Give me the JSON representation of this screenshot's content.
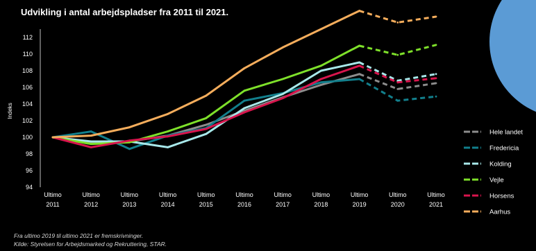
{
  "title": "Udvikling i antal arbejdspladser fra 2011 til 2021.",
  "footnotes": [
    "Fra ultimo 2019 til ultimo 2021 er fremskrivninger.",
    "Kilde: Styrelsen for Arbejdsmarked og Rekruttering, STAR."
  ],
  "chart_data": {
    "type": "line",
    "title": "Udvikling i antal arbejdspladser fra 2011 til 2021.",
    "xlabel": "",
    "ylabel": "Indeks",
    "x_top": [
      "Ultimo",
      "Ultimo",
      "Ultimo",
      "Ultimo",
      "Ultimo",
      "Ultimo",
      "Ultimo",
      "Ultimo",
      "Ultimo",
      "Ultimo",
      "Ultimo"
    ],
    "x": [
      "2011",
      "2012",
      "2013",
      "2014",
      "2015",
      "2016",
      "2017",
      "2018",
      "2019",
      "2020",
      "2021"
    ],
    "yticks": [
      94,
      96,
      98,
      100,
      102,
      104,
      106,
      108,
      110,
      112
    ],
    "ylim": [
      94,
      113
    ],
    "grid": false,
    "legend_position": "right",
    "projection_from": "2019",
    "series": [
      {
        "name": "Hele landet",
        "color": "#8c8c8c",
        "values": [
          100,
          99.3,
          99.5,
          100.2,
          101.5,
          103.2,
          104.8,
          106.3,
          107.6,
          105.8,
          106.5
        ]
      },
      {
        "name": "Fredericia",
        "color": "#127f8c",
        "values": [
          100,
          100.7,
          98.6,
          100.2,
          101.1,
          104.4,
          105.3,
          106.6,
          107.0,
          104.4,
          104.9
        ]
      },
      {
        "name": "Kolding",
        "color": "#a8e8ea",
        "values": [
          100,
          99.5,
          99.5,
          98.8,
          100.4,
          103.5,
          105.2,
          108.0,
          109.0,
          106.8,
          107.6
        ]
      },
      {
        "name": "Vejle",
        "color": "#7ee02a",
        "values": [
          100,
          99.2,
          99.4,
          100.7,
          102.3,
          105.6,
          107.0,
          108.6,
          111.0,
          109.9,
          111.1
        ]
      },
      {
        "name": "Horsens",
        "color": "#d8154d",
        "values": [
          100,
          98.8,
          99.6,
          100.1,
          101.0,
          103.0,
          104.7,
          107.0,
          108.6,
          106.6,
          107.1
        ]
      },
      {
        "name": "Aarhus",
        "color": "#f5ad5c",
        "values": [
          100,
          100.2,
          101.2,
          102.8,
          105.0,
          108.3,
          110.8,
          113.0,
          115.2,
          113.8,
          114.5
        ]
      }
    ]
  },
  "colors": {
    "background": "#000000",
    "axis": "#bfbfbf",
    "text": "#ffffff",
    "decor_circle": "#5b9bd5"
  }
}
